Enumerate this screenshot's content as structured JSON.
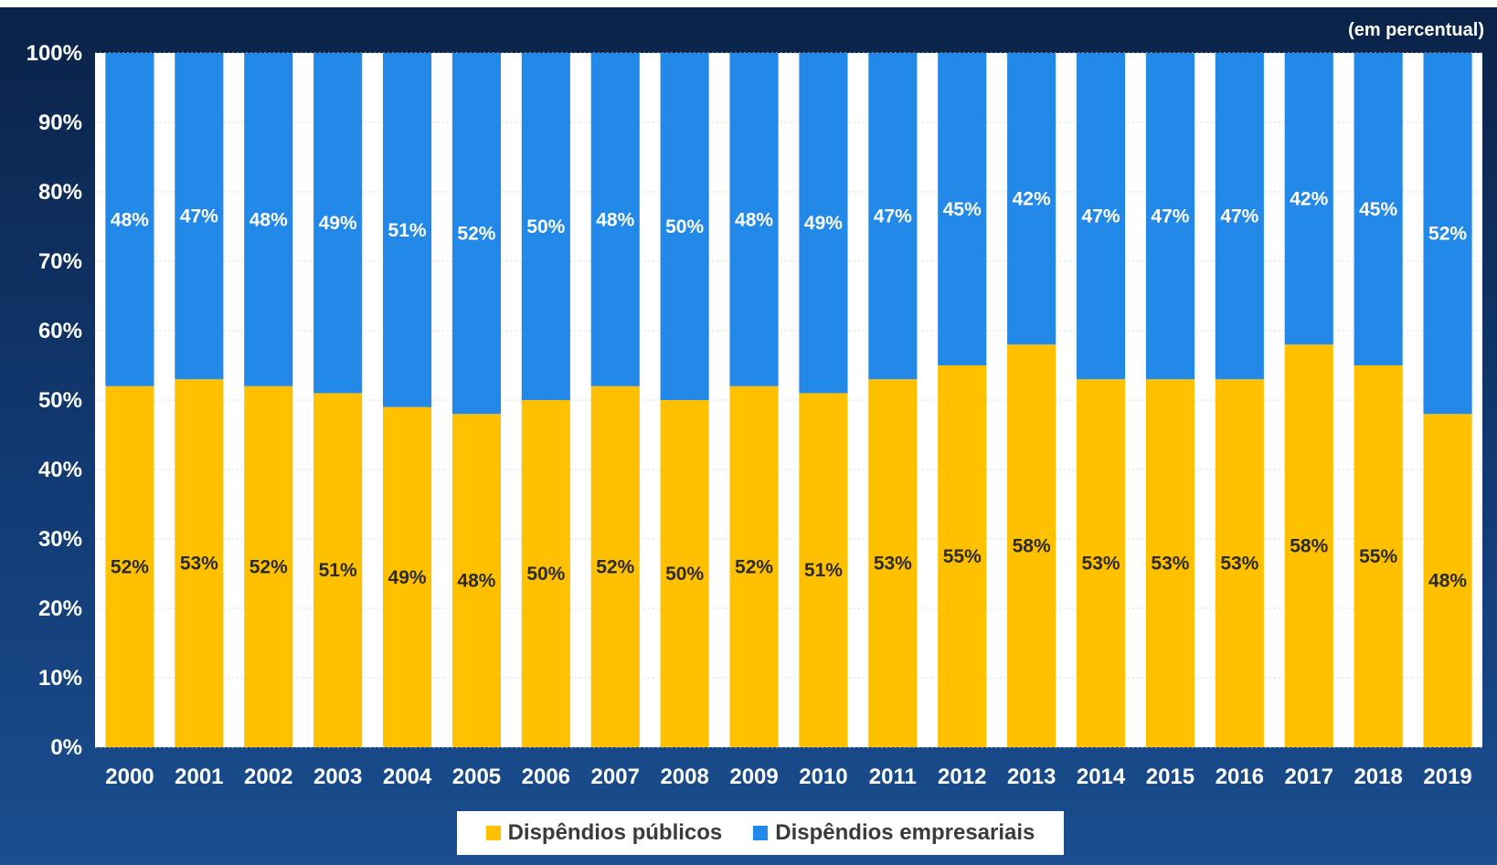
{
  "chart_data": {
    "type": "bar",
    "stacked": true,
    "unit_note": "(em percentual)",
    "categories": [
      "2000",
      "2001",
      "2002",
      "2003",
      "2004",
      "2005",
      "2006",
      "2007",
      "2008",
      "2009",
      "2010",
      "2011",
      "2012",
      "2013",
      "2014",
      "2015",
      "2016",
      "2017",
      "2018",
      "2019"
    ],
    "series": [
      {
        "name": "Dispêndios públicos",
        "color": "#ffc000",
        "values": [
          52,
          53,
          52,
          51,
          49,
          48,
          50,
          52,
          50,
          52,
          51,
          53,
          55,
          58,
          53,
          53,
          53,
          58,
          55,
          48
        ],
        "labels": [
          "52%",
          "53%",
          "52%",
          "51%",
          "49%",
          "48%",
          "50%",
          "52%",
          "50%",
          "52%",
          "51%",
          "53%",
          "55%",
          "58%",
          "53%",
          "53%",
          "53%",
          "58%",
          "55%",
          "48%"
        ]
      },
      {
        "name": "Dispêndios empresariais",
        "color": "#2389e8",
        "values": [
          48,
          47,
          48,
          49,
          51,
          52,
          50,
          48,
          50,
          48,
          49,
          47,
          45,
          42,
          47,
          47,
          47,
          42,
          45,
          52
        ],
        "labels": [
          "48%",
          "47%",
          "48%",
          "49%",
          "51%",
          "52%",
          "50%",
          "48%",
          "50%",
          "48%",
          "49%",
          "47%",
          "45%",
          "42%",
          "47%",
          "47%",
          "47%",
          "42%",
          "45%",
          "52%"
        ]
      }
    ],
    "ylim": [
      0,
      100
    ],
    "yticks": [
      0,
      10,
      20,
      30,
      40,
      50,
      60,
      70,
      80,
      90,
      100
    ],
    "ytick_labels": [
      "0%",
      "10%",
      "20%",
      "30%",
      "40%",
      "50%",
      "60%",
      "70%",
      "80%",
      "90%",
      "100%"
    ],
    "grid": true,
    "legend_position": "bottom"
  }
}
